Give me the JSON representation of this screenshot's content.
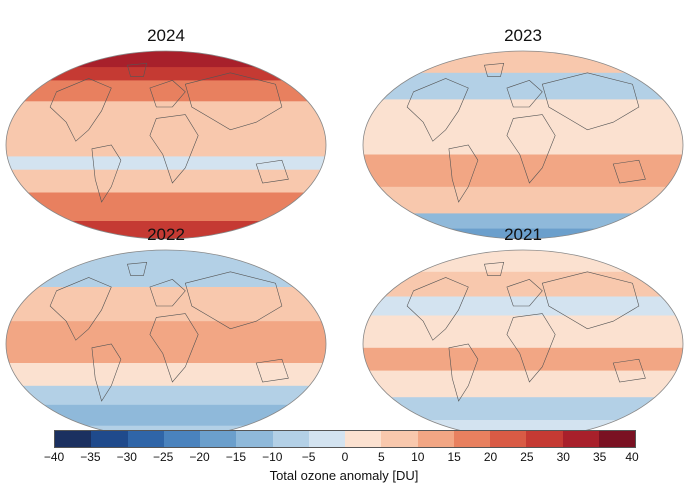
{
  "panels": [
    {
      "title": "2024",
      "variant": "warm"
    },
    {
      "title": "2023",
      "variant": "mild"
    },
    {
      "title": "2022",
      "variant": "cool"
    },
    {
      "title": "2021",
      "variant": "neutral"
    }
  ],
  "colorbar": {
    "label": "Total ozone anomaly [DU]",
    "ticks": [
      "−40",
      "−35",
      "−30",
      "−25",
      "−20",
      "−15",
      "−10",
      "−5",
      "0",
      "5",
      "10",
      "15",
      "20",
      "25",
      "30",
      "35",
      "40"
    ],
    "colors": [
      "#1b3060",
      "#1f4a8c",
      "#2f65a8",
      "#4a83be",
      "#6b9fcc",
      "#8fb9da",
      "#b3d0e6",
      "#d3e3f0",
      "#fbe1d0",
      "#f8c8ad",
      "#f2a684",
      "#e8805f",
      "#d95b45",
      "#c53a33",
      "#a8202b",
      "#7a1122"
    ]
  }
}
